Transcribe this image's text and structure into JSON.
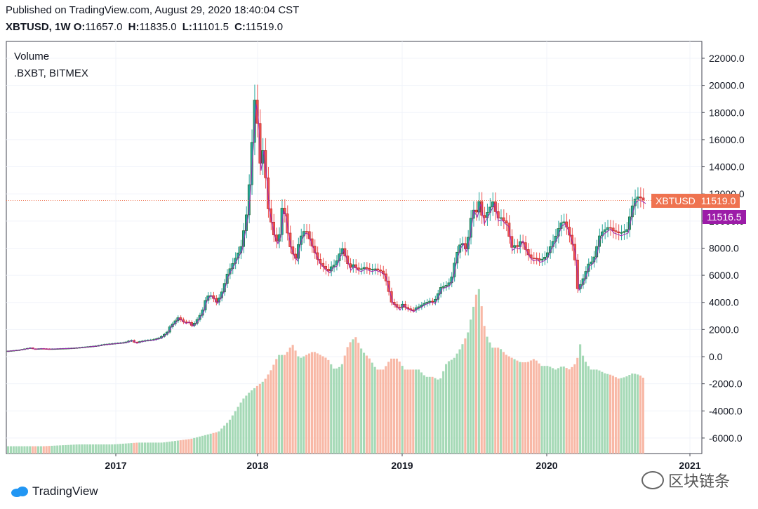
{
  "header": {
    "published": "Published on TradingView.com, August 29, 2020 18:40:04 CST",
    "symbol": "XBTUSD, 1W",
    "o_label": "O:",
    "o_value": "11657.0",
    "h_label": "H:",
    "h_value": "11835.0",
    "l_label": "L:",
    "l_value": "11101.5",
    "c_label": "C:",
    "c_value": "11519.0"
  },
  "legend": {
    "line1": "Volume",
    "line2": ".BXBT, BITMEX"
  },
  "price_tags": {
    "last_symbol": "XBTUSD",
    "last_value": "11519.0",
    "index_value": "11516.5",
    "last_color": "#ef7350",
    "index_color": "#9c1ca8"
  },
  "footer": {
    "brand": "TradingView"
  },
  "watermark": {
    "text": "区块链条"
  },
  "colors": {
    "up": "#26a69a",
    "down": "#ef5350",
    "up_vol": "#a5d9b6",
    "down_vol": "#f8b8a6",
    "ma": "#9c27b0"
  },
  "chart_data": {
    "type": "candlestick",
    "y_ticks": [
      "22000.0",
      "20000.0",
      "18000.0",
      "16000.0",
      "14000.0",
      "12000.0",
      "10000.0",
      "8000.0",
      "6000.0",
      "4000.0",
      "2000.0",
      "0.0",
      "-2000.0",
      "-4000.0",
      "-6000.0"
    ],
    "x_ticks": [
      "2017",
      "2018",
      "2019",
      "2020",
      "2021"
    ],
    "ylim": [
      -7300,
      22800
    ],
    "price_path": [
      [
        0,
        400
      ],
      [
        10,
        450
      ],
      [
        20,
        500
      ],
      [
        30,
        600
      ],
      [
        35,
        650
      ],
      [
        40,
        560
      ],
      [
        50,
        600
      ],
      [
        60,
        570
      ],
      [
        70,
        580
      ],
      [
        80,
        600
      ],
      [
        90,
        620
      ],
      [
        100,
        650
      ],
      [
        110,
        700
      ],
      [
        120,
        750
      ],
      [
        130,
        800
      ],
      [
        140,
        900
      ],
      [
        150,
        950
      ],
      [
        160,
        1000
      ],
      [
        170,
        1050
      ],
      [
        175,
        1150
      ],
      [
        180,
        1200
      ],
      [
        185,
        1000
      ],
      [
        190,
        1100
      ],
      [
        200,
        1200
      ],
      [
        210,
        1250
      ],
      [
        220,
        1400
      ],
      [
        225,
        1600
      ],
      [
        230,
        1800
      ],
      [
        235,
        2300
      ],
      [
        240,
        2500
      ],
      [
        245,
        2900
      ],
      [
        250,
        2700
      ],
      [
        255,
        2500
      ],
      [
        260,
        2600
      ],
      [
        265,
        2300
      ],
      [
        270,
        2500
      ],
      [
        275,
        2900
      ],
      [
        280,
        3300
      ],
      [
        285,
        4200
      ],
      [
        290,
        4600
      ],
      [
        295,
        4400
      ],
      [
        300,
        4000
      ],
      [
        305,
        4400
      ],
      [
        310,
        5000
      ],
      [
        315,
        6000
      ],
      [
        320,
        6500
      ],
      [
        325,
        7000
      ],
      [
        330,
        7500
      ],
      [
        335,
        8000
      ],
      [
        340,
        9500
      ],
      [
        345,
        11000
      ],
      [
        350,
        15000
      ],
      [
        355,
        19000
      ],
      [
        358,
        18000
      ],
      [
        362,
        14000
      ],
      [
        366,
        15500
      ],
      [
        370,
        13500
      ],
      [
        374,
        11000
      ],
      [
        378,
        10000
      ],
      [
        382,
        9000
      ],
      [
        386,
        8500
      ],
      [
        390,
        9000
      ],
      [
        394,
        11000
      ],
      [
        398,
        10500
      ],
      [
        402,
        9000
      ],
      [
        406,
        8000
      ],
      [
        410,
        7500
      ],
      [
        414,
        7200
      ],
      [
        418,
        8500
      ],
      [
        422,
        9000
      ],
      [
        426,
        9300
      ],
      [
        430,
        9200
      ],
      [
        434,
        8500
      ],
      [
        438,
        8000
      ],
      [
        442,
        7500
      ],
      [
        446,
        7000
      ],
      [
        450,
        6800
      ],
      [
        455,
        6500
      ],
      [
        460,
        6300
      ],
      [
        465,
        6700
      ],
      [
        470,
        6800
      ],
      [
        475,
        7500
      ],
      [
        480,
        8000
      ],
      [
        485,
        7200
      ],
      [
        490,
        6500
      ],
      [
        495,
        6800
      ],
      [
        500,
        6500
      ],
      [
        505,
        6400
      ],
      [
        510,
        6600
      ],
      [
        515,
        6500
      ],
      [
        520,
        6400
      ],
      [
        525,
        6500
      ],
      [
        530,
        6400
      ],
      [
        535,
        6300
      ],
      [
        540,
        6000
      ],
      [
        545,
        5000
      ],
      [
        550,
        4000
      ],
      [
        555,
        3800
      ],
      [
        560,
        3500
      ],
      [
        565,
        3900
      ],
      [
        570,
        3600
      ],
      [
        575,
        3500
      ],
      [
        580,
        3400
      ],
      [
        585,
        3600
      ],
      [
        590,
        3700
      ],
      [
        595,
        3900
      ],
      [
        600,
        4000
      ],
      [
        605,
        4100
      ],
      [
        610,
        4000
      ],
      [
        615,
        4500
      ],
      [
        620,
        5100
      ],
      [
        625,
        5200
      ],
      [
        630,
        5300
      ],
      [
        635,
        5700
      ],
      [
        640,
        7000
      ],
      [
        645,
        8000
      ],
      [
        650,
        8500
      ],
      [
        655,
        7900
      ],
      [
        660,
        9000
      ],
      [
        665,
        11000
      ],
      [
        670,
        10500
      ],
      [
        675,
        11500
      ],
      [
        680,
        10000
      ],
      [
        685,
        10500
      ],
      [
        690,
        11000
      ],
      [
        695,
        11500
      ],
      [
        700,
        10200
      ],
      [
        705,
        10300
      ],
      [
        710,
        10000
      ],
      [
        715,
        9800
      ],
      [
        720,
        8000
      ],
      [
        725,
        8200
      ],
      [
        730,
        8100
      ],
      [
        735,
        8700
      ],
      [
        740,
        8000
      ],
      [
        745,
        7500
      ],
      [
        750,
        7200
      ],
      [
        755,
        7300
      ],
      [
        760,
        7100
      ],
      [
        765,
        7200
      ],
      [
        770,
        7400
      ],
      [
        775,
        8000
      ],
      [
        780,
        8500
      ],
      [
        785,
        9000
      ],
      [
        790,
        9800
      ],
      [
        795,
        10000
      ],
      [
        800,
        9500
      ],
      [
        805,
        8700
      ],
      [
        810,
        7800
      ],
      [
        815,
        5000
      ],
      [
        820,
        5400
      ],
      [
        825,
        6000
      ],
      [
        830,
        6800
      ],
      [
        835,
        7000
      ],
      [
        840,
        7500
      ],
      [
        845,
        8800
      ],
      [
        850,
        9200
      ],
      [
        855,
        9400
      ],
      [
        860,
        9600
      ],
      [
        865,
        9300
      ],
      [
        870,
        9200
      ],
      [
        875,
        9100
      ],
      [
        880,
        9200
      ],
      [
        885,
        9300
      ],
      [
        890,
        10500
      ],
      [
        895,
        11500
      ],
      [
        900,
        11800
      ],
      [
        905,
        11700
      ],
      [
        910,
        11519
      ]
    ],
    "volume_bars": [
      [
        0,
        20
      ],
      [
        50,
        20
      ],
      [
        100,
        25
      ],
      [
        150,
        25
      ],
      [
        185,
        30
      ],
      [
        200,
        30
      ],
      [
        220,
        30
      ],
      [
        240,
        35
      ],
      [
        260,
        40
      ],
      [
        280,
        50
      ],
      [
        300,
        60
      ],
      [
        315,
        90
      ],
      [
        325,
        120
      ],
      [
        335,
        150
      ],
      [
        345,
        170
      ],
      [
        355,
        185
      ],
      [
        365,
        200
      ],
      [
        375,
        230
      ],
      [
        385,
        270
      ],
      [
        395,
        270
      ],
      [
        405,
        300
      ],
      [
        415,
        260
      ],
      [
        425,
        270
      ],
      [
        435,
        280
      ],
      [
        445,
        270
      ],
      [
        455,
        260
      ],
      [
        465,
        230
      ],
      [
        475,
        240
      ],
      [
        485,
        300
      ],
      [
        495,
        320
      ],
      [
        505,
        280
      ],
      [
        515,
        260
      ],
      [
        525,
        230
      ],
      [
        535,
        230
      ],
      [
        545,
        260
      ],
      [
        555,
        260
      ],
      [
        565,
        230
      ],
      [
        575,
        230
      ],
      [
        585,
        230
      ],
      [
        595,
        210
      ],
      [
        605,
        210
      ],
      [
        615,
        200
      ],
      [
        625,
        250
      ],
      [
        635,
        260
      ],
      [
        645,
        290
      ],
      [
        655,
        330
      ],
      [
        665,
        420
      ],
      [
        670,
        460
      ],
      [
        675,
        400
      ],
      [
        680,
        330
      ],
      [
        690,
        290
      ],
      [
        700,
        290
      ],
      [
        710,
        270
      ],
      [
        720,
        260
      ],
      [
        730,
        250
      ],
      [
        740,
        250
      ],
      [
        750,
        260
      ],
      [
        760,
        240
      ],
      [
        770,
        240
      ],
      [
        780,
        230
      ],
      [
        790,
        240
      ],
      [
        800,
        230
      ],
      [
        810,
        250
      ],
      [
        815,
        300
      ],
      [
        820,
        260
      ],
      [
        830,
        230
      ],
      [
        840,
        230
      ],
      [
        850,
        220
      ],
      [
        860,
        215
      ],
      [
        870,
        205
      ],
      [
        880,
        210
      ],
      [
        890,
        220
      ],
      [
        900,
        215
      ],
      [
        910,
        200
      ]
    ]
  }
}
